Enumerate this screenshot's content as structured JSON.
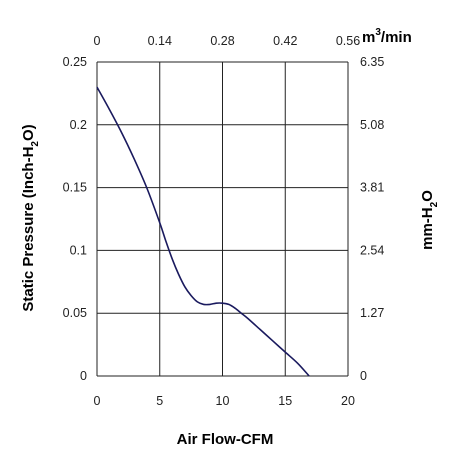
{
  "chart_data": {
    "type": "line",
    "xlabel": "Air Flow-CFM",
    "ylabel": "Static Pressure (Inch-H2O)",
    "ylabel_parts": [
      "Static Pressure (Inch-H",
      "2",
      "O)"
    ],
    "y2label_parts": [
      "mm-H",
      "2",
      "O"
    ],
    "x2label_parts": [
      "m",
      "3",
      "/min"
    ],
    "xlim": [
      0,
      20
    ],
    "ylim": [
      0,
      0.25
    ],
    "grid": true,
    "x_ticks": [
      "0",
      "5",
      "10",
      "15",
      "20"
    ],
    "y_ticks": [
      "0",
      "0.05",
      "0.1",
      "0.15",
      "0.2",
      "0.25"
    ],
    "x2_ticks": [
      "0",
      "0.14",
      "0.28",
      "0.42",
      "0.56"
    ],
    "y2_ticks": [
      "0",
      "1.27",
      "2.54",
      "3.81",
      "5.08",
      "6.35"
    ],
    "series": [
      {
        "color": "#1a1a5e",
        "x": [
          0,
          1,
          2,
          3,
          4,
          5,
          5.5,
          6,
          6.5,
          7,
          7.5,
          8,
          8.5,
          9,
          9.5,
          10,
          10.5,
          11,
          11.5,
          12,
          13,
          14,
          15,
          16,
          16.9
        ],
        "y": [
          0.23,
          0.212,
          0.193,
          0.172,
          0.149,
          0.122,
          0.107,
          0.093,
          0.081,
          0.071,
          0.064,
          0.059,
          0.057,
          0.057,
          0.058,
          0.058,
          0.057,
          0.054,
          0.05,
          0.046,
          0.037,
          0.028,
          0.019,
          0.01,
          0.0
        ]
      }
    ]
  }
}
